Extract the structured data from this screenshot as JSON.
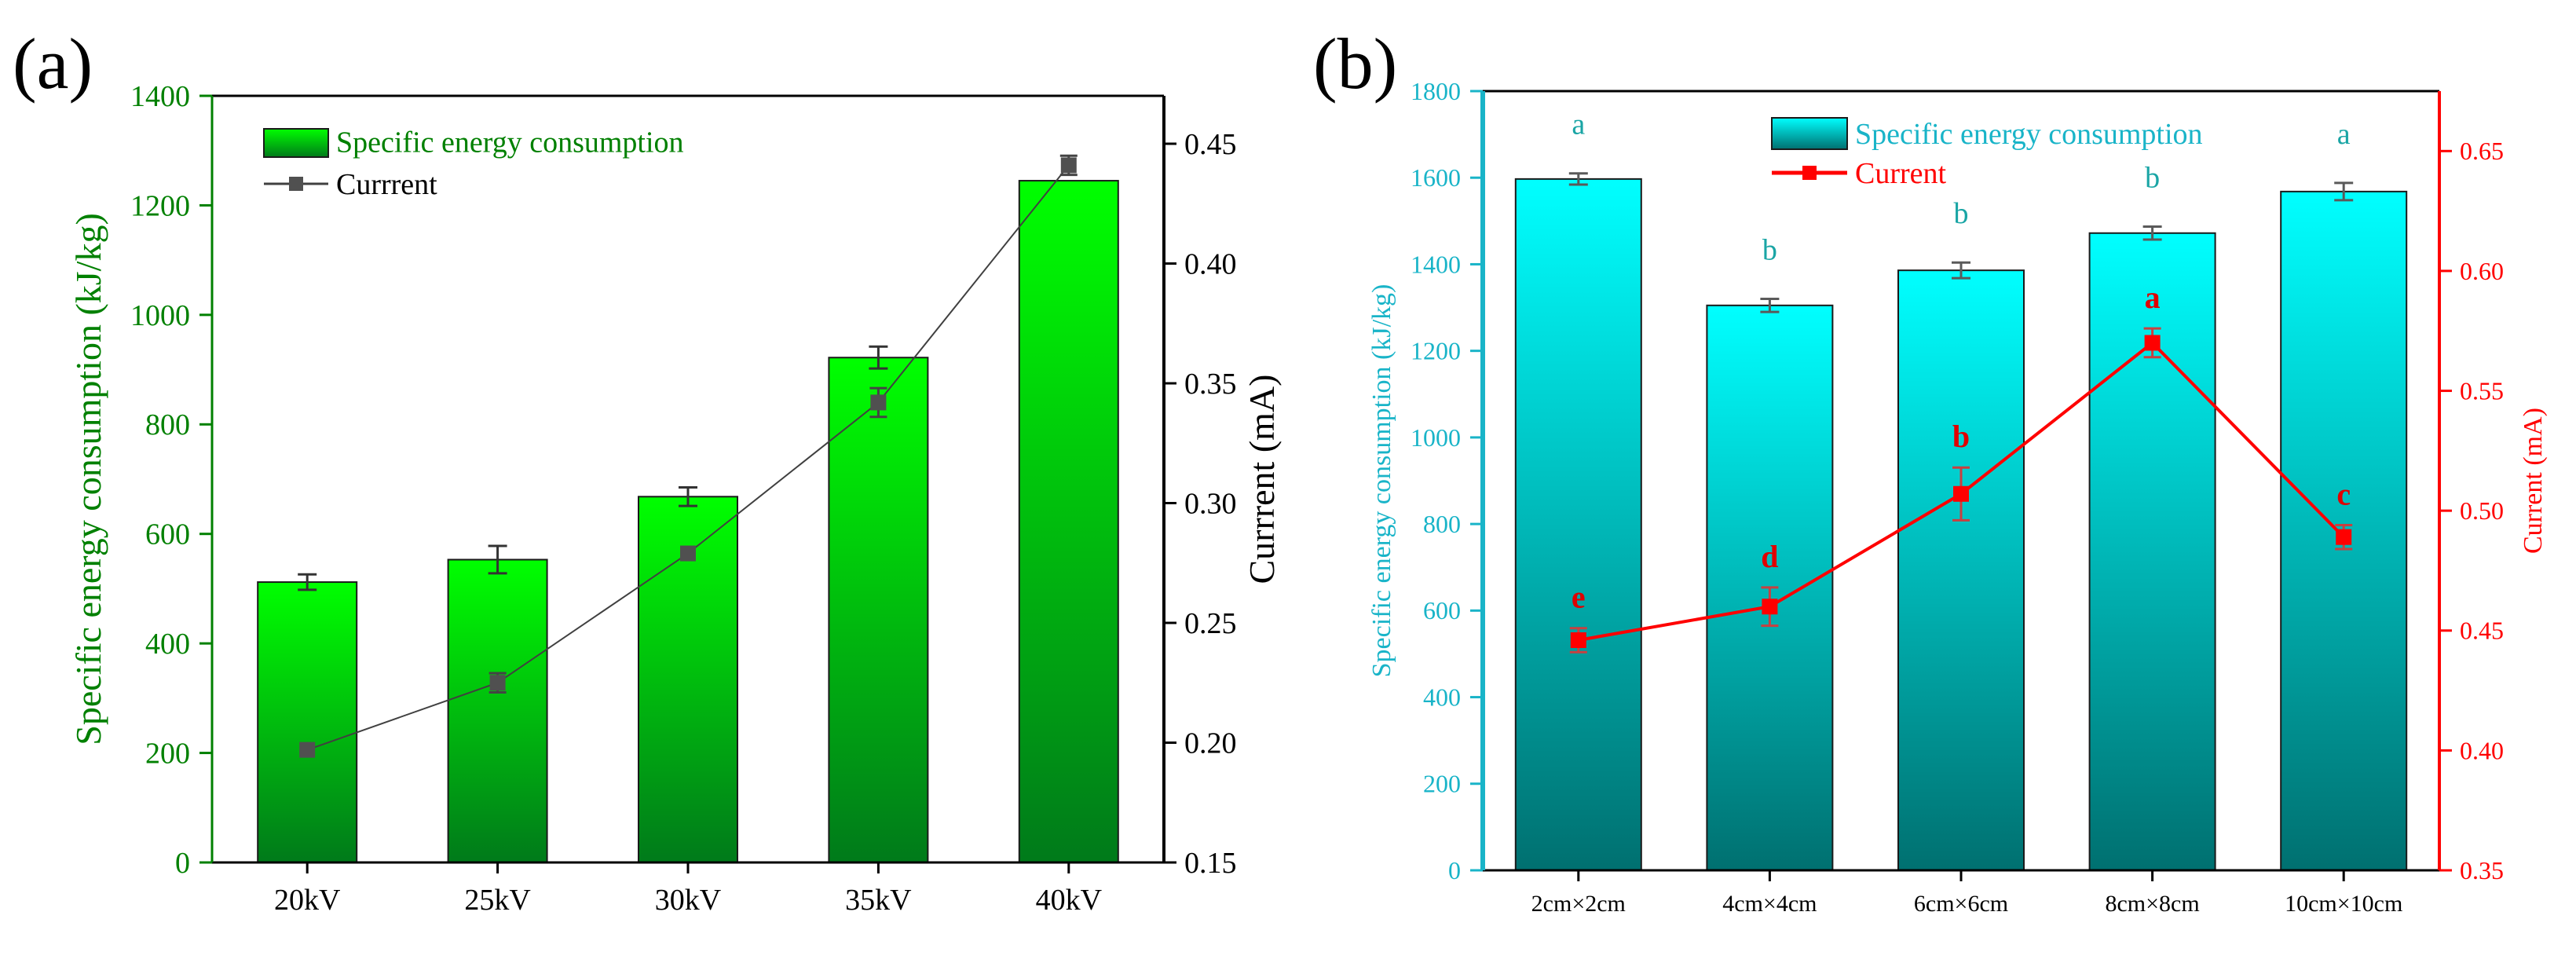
{
  "colors": {
    "a_bar_top": "#00ff00",
    "a_bar_bottom": "#007a1a",
    "a_axis_left": "#008000",
    "a_line": "#404040",
    "a_marker": "#505050",
    "b_bar_top": "#00ffff",
    "b_bar_bottom": "#007070",
    "b_axis_left": "#19b4c8",
    "b_line": "#ff0000",
    "b_letters_bar": "#1aa5a5",
    "b_letters_line": "#e00000"
  },
  "chart_data": [
    {
      "panel_label": "(a)",
      "type": "bar",
      "categories": [
        "20kV",
        "25kV",
        "30kV",
        "35kV",
        "40kV"
      ],
      "series": [
        {
          "name": "Specific energy consumption",
          "type": "bar",
          "axis": "left",
          "values": [
            512,
            553,
            668,
            922,
            1245
          ],
          "errors": [
            14,
            25,
            17,
            20,
            0
          ]
        },
        {
          "name": "Currrent",
          "type": "line",
          "axis": "right",
          "values": [
            0.197,
            0.225,
            0.279,
            0.342,
            0.441
          ],
          "errors": [
            0,
            0.004,
            0,
            0.006,
            0.004
          ]
        }
      ],
      "ylabel": "Specific energy consumption (kJ/kg)",
      "ylim": [
        0,
        1400
      ],
      "yticks": [
        0,
        200,
        400,
        600,
        800,
        1000,
        1200,
        1400
      ],
      "y2label": "Currrent (mA)",
      "y2lim": [
        0.15,
        0.47
      ],
      "y2ticks": [
        "0.15",
        "0.20",
        "0.25",
        "0.30",
        "0.35",
        "0.40",
        "0.45"
      ],
      "legend": "top-left"
    },
    {
      "panel_label": "(b)",
      "type": "bar",
      "categories": [
        "2cm×2cm",
        "4cm×4cm",
        "6cm×6cm",
        "8cm×8cm",
        "10cm×10cm"
      ],
      "series": [
        {
          "name": "Specific energy consumption",
          "type": "bar",
          "axis": "left",
          "values": [
            1597,
            1305,
            1386,
            1472,
            1568
          ],
          "errors": [
            13,
            15,
            18,
            15,
            20
          ],
          "letters": [
            "a",
            "b",
            "b",
            "b",
            "a"
          ]
        },
        {
          "name": "Current",
          "type": "line",
          "axis": "right",
          "values": [
            0.446,
            0.46,
            0.507,
            0.57,
            0.489
          ],
          "errors": [
            0.005,
            0.008,
            0.011,
            0.006,
            0.005
          ],
          "letters": [
            "e",
            "d",
            "b",
            "a",
            "c"
          ]
        }
      ],
      "ylabel": "Specific energy consumption (kJ/kg)",
      "ylim": [
        0,
        1800
      ],
      "yticks": [
        0,
        200,
        400,
        600,
        800,
        1000,
        1200,
        1400,
        1600,
        1800
      ],
      "y2label": "Current (mA)",
      "y2lim": [
        0.35,
        0.675
      ],
      "y2ticks": [
        "0.35",
        "0.40",
        "0.45",
        "0.50",
        "0.55",
        "0.60",
        "0.65"
      ],
      "legend": "top-center"
    }
  ]
}
